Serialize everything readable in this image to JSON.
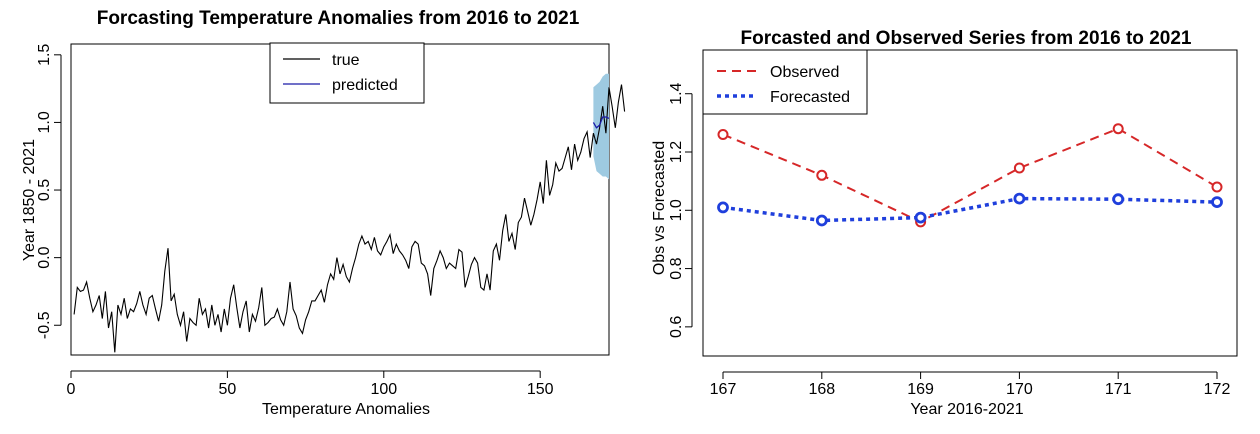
{
  "chart_data": [
    {
      "type": "line",
      "title": "Forcasting Temperature Anomalies from 2016 to 2021",
      "xlabel": "Temperature Anomalies",
      "ylabel": "Year 1850 - 2021",
      "xlim": [
        0,
        172
      ],
      "ylim": [
        -0.72,
        1.58
      ],
      "xticks": [
        0,
        50,
        100,
        150
      ],
      "yticks": [
        -0.5,
        0.0,
        0.5,
        1.0,
        1.5
      ],
      "ytick_labels": [
        "-0.5",
        "0.0",
        "0.5",
        "1.0",
        "1.5"
      ],
      "legend": {
        "position": "top-center",
        "entries": [
          {
            "label": "true",
            "color": "#000000"
          },
          {
            "label": "predicted",
            "color": "#1a1aa8"
          }
        ]
      },
      "series": [
        {
          "name": "true",
          "color": "#000000",
          "x_start": 1,
          "values": [
            -0.42,
            -0.22,
            -0.25,
            -0.24,
            -0.18,
            -0.3,
            -0.4,
            -0.35,
            -0.28,
            -0.45,
            -0.25,
            -0.52,
            -0.4,
            -0.7,
            -0.35,
            -0.42,
            -0.3,
            -0.45,
            -0.38,
            -0.4,
            -0.34,
            -0.25,
            -0.35,
            -0.42,
            -0.3,
            -0.28,
            -0.38,
            -0.47,
            -0.35,
            -0.1,
            0.07,
            -0.32,
            -0.27,
            -0.42,
            -0.5,
            -0.4,
            -0.62,
            -0.45,
            -0.48,
            -0.5,
            -0.3,
            -0.42,
            -0.38,
            -0.52,
            -0.35,
            -0.5,
            -0.42,
            -0.55,
            -0.38,
            -0.5,
            -0.3,
            -0.2,
            -0.37,
            -0.52,
            -0.4,
            -0.32,
            -0.55,
            -0.42,
            -0.47,
            -0.37,
            -0.22,
            -0.5,
            -0.48,
            -0.45,
            -0.44,
            -0.38,
            -0.46,
            -0.5,
            -0.4,
            -0.18,
            -0.38,
            -0.43,
            -0.52,
            -0.56,
            -0.46,
            -0.4,
            -0.32,
            -0.32,
            -0.28,
            -0.24,
            -0.33,
            -0.2,
            -0.12,
            -0.16,
            0.0,
            -0.12,
            -0.05,
            -0.14,
            -0.18,
            -0.08,
            0.0,
            0.1,
            0.16,
            0.1,
            0.12,
            0.06,
            0.15,
            0.05,
            0.02,
            0.08,
            0.12,
            0.17,
            0.03,
            0.1,
            0.05,
            0.02,
            -0.02,
            -0.08,
            0.08,
            0.12,
            0.1,
            -0.04,
            -0.06,
            -0.12,
            -0.28,
            -0.08,
            -0.02,
            0.05,
            0.0,
            -0.08,
            -0.04,
            -0.06,
            -0.08,
            0.06,
            0.04,
            -0.22,
            -0.14,
            -0.05,
            0.0,
            -0.04,
            -0.22,
            -0.24,
            -0.12,
            -0.24,
            0.05,
            0.1,
            -0.02,
            0.2,
            0.32,
            0.12,
            0.18,
            0.06,
            0.26,
            0.3,
            0.44,
            0.34,
            0.24,
            0.32,
            0.43,
            0.56,
            0.4,
            0.72,
            0.46,
            0.54,
            0.7,
            0.64,
            0.66,
            0.74,
            0.82,
            0.65,
            0.84,
            0.72,
            0.78,
            0.88,
            0.93,
            0.74,
            0.92,
            0.84,
            0.96,
            1.12,
            0.92,
            1.26,
            1.12,
            0.96,
            1.15,
            1.28,
            1.08
          ]
        }
      ],
      "forecast": {
        "x": [
          167,
          168,
          169,
          170,
          171,
          172
        ],
        "mean": [
          1.0,
          0.96,
          0.98,
          1.04,
          1.04,
          1.03
        ],
        "lower": [
          0.75,
          0.64,
          0.62,
          0.6,
          0.6,
          0.58
        ],
        "upper": [
          1.26,
          1.28,
          1.3,
          1.34,
          1.36,
          1.36
        ],
        "band_color": "#9ecae1",
        "line_color": "#1a1aa8"
      }
    },
    {
      "type": "line",
      "title": "Forcasted and Observed Series from 2016 to 2021",
      "xlabel": "Year 2016-2021",
      "ylabel": "Obs vs Forecasted",
      "xlim": [
        167,
        172
      ],
      "ylim": [
        0.5,
        1.55
      ],
      "categories": [
        "167",
        "168",
        "169",
        "170",
        "171",
        "172"
      ],
      "yticks": [
        0.6,
        0.8,
        1.0,
        1.2,
        1.4
      ],
      "ytick_labels": [
        "0.6",
        "0.8",
        "1.0",
        "1.2",
        "1.4"
      ],
      "legend": {
        "position": "top-left",
        "entries": [
          {
            "label": "Observed",
            "color": "#d62728"
          },
          {
            "label": "Forecasted",
            "color": "#1f3fdc"
          }
        ]
      },
      "series": [
        {
          "name": "Observed",
          "color": "#d62728",
          "style": "dashed",
          "values": [
            1.26,
            1.12,
            0.96,
            1.145,
            1.28,
            1.08
          ]
        },
        {
          "name": "Forecasted",
          "color": "#1f3fdc",
          "style": "dotted",
          "values": [
            1.01,
            0.965,
            0.975,
            1.04,
            1.038,
            1.028
          ]
        }
      ]
    }
  ]
}
